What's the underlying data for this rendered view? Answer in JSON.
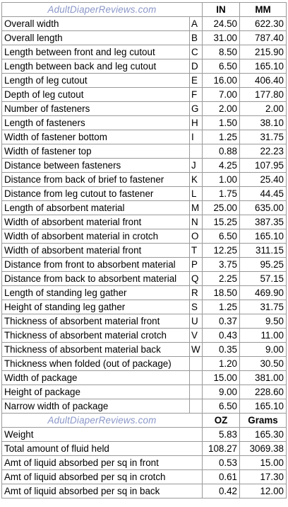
{
  "section1": {
    "site_label": "AdultDiaperReviews.com",
    "unit_a": "IN",
    "unit_b": "MM",
    "rows": [
      {
        "label": "Overall width",
        "code": "A",
        "a": "24.50",
        "b": "622.30"
      },
      {
        "label": "Overall length",
        "code": "B",
        "a": "31.00",
        "b": "787.40"
      },
      {
        "label": "Length between front and leg cutout",
        "code": "C",
        "a": "8.50",
        "b": "215.90"
      },
      {
        "label": "Length between back and leg cutout",
        "code": "D",
        "a": "6.50",
        "b": "165.10"
      },
      {
        "label": "Length of leg cutout",
        "code": "E",
        "a": "16.00",
        "b": "406.40"
      },
      {
        "label": "Depth of leg cutout",
        "code": "F",
        "a": "7.00",
        "b": "177.80"
      },
      {
        "label": "Number of fasteners",
        "code": "G",
        "a": "2.00",
        "b": "2.00"
      },
      {
        "label": "Length of fasteners",
        "code": "H",
        "a": "1.50",
        "b": "38.10"
      },
      {
        "label": "Width of fastener bottom",
        "code": "I",
        "a": "1.25",
        "b": "31.75"
      },
      {
        "label": "Width of fastener top",
        "code": "",
        "a": "0.88",
        "b": "22.23"
      },
      {
        "label": "Distance between fasteners",
        "code": "J",
        "a": "4.25",
        "b": "107.95"
      },
      {
        "label": "Distance from back of brief to fastener",
        "code": "K",
        "a": "1.00",
        "b": "25.40"
      },
      {
        "label": "Distance from leg cutout to fastener",
        "code": "L",
        "a": "1.75",
        "b": "44.45"
      },
      {
        "label": "Length of absorbent material",
        "code": "M",
        "a": "25.00",
        "b": "635.00"
      },
      {
        "label": "Width of absorbent material front",
        "code": "N",
        "a": "15.25",
        "b": "387.35"
      },
      {
        "label": "Width of absorbent material in crotch",
        "code": "O",
        "a": "6.50",
        "b": "165.10"
      },
      {
        "label": "Width of absorbent material front",
        "code": "T",
        "a": "12.25",
        "b": "311.15"
      },
      {
        "label": "Distance from front to absorbent material",
        "code": "P",
        "a": "3.75",
        "b": "95.25"
      },
      {
        "label": "Distance from back to absorbent material",
        "code": "Q",
        "a": "2.25",
        "b": "57.15"
      },
      {
        "label": "Length of standing leg gather",
        "code": "R",
        "a": "18.50",
        "b": "469.90"
      },
      {
        "label": "Height of standing leg gather",
        "code": "S",
        "a": "1.25",
        "b": "31.75"
      },
      {
        "label": "Thickness of absorbent material front",
        "code": "U",
        "a": "0.37",
        "b": "9.50"
      },
      {
        "label": "Thickness of absorbent material crotch",
        "code": "V",
        "a": "0.43",
        "b": "11.00"
      },
      {
        "label": "Thickness of absorbent material back",
        "code": "W",
        "a": "0.35",
        "b": "9.00"
      },
      {
        "label": "Thickness when folded (out of package)",
        "code": "",
        "a": "1.20",
        "b": "30.50"
      },
      {
        "label": "Width of package",
        "code": "",
        "a": "15.00",
        "b": "381.00"
      },
      {
        "label": "Height of package",
        "code": "",
        "a": "9.00",
        "b": "228.60"
      },
      {
        "label": "Narrow width of package",
        "code": "",
        "a": "6.50",
        "b": "165.10"
      }
    ]
  },
  "section2": {
    "site_label": "AdultDiaperReviews.com",
    "unit_a": "OZ",
    "unit_b": "Grams",
    "rows": [
      {
        "label": "Weight",
        "a": "5.83",
        "b": "165.30"
      },
      {
        "label": "Total amount of fluid held",
        "a": "108.27",
        "b": "3069.38"
      },
      {
        "label": "Amt of liquid absorbed per sq in front",
        "a": "0.53",
        "b": "15.00"
      },
      {
        "label": "Amt of liquid absorbed per sq in crotch",
        "a": "0.61",
        "b": "17.30"
      },
      {
        "label": "Amt of liquid absorbed per sq in back",
        "a": "0.42",
        "b": "12.00"
      }
    ]
  }
}
